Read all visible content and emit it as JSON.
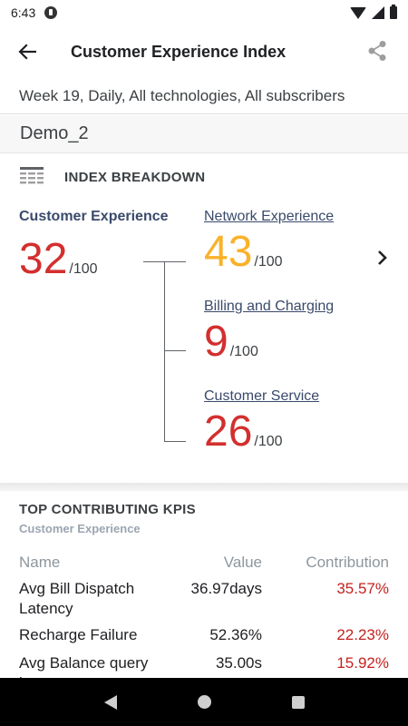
{
  "status_bar": {
    "time": "6:43"
  },
  "app_bar": {
    "title": "Customer Experience Index",
    "back_icon": "arrow-back-icon",
    "share_icon": "share-icon"
  },
  "filter": {
    "text": "Week 19, Daily, All technologies, All subscribers"
  },
  "context": {
    "name": "Demo_2"
  },
  "breakdown": {
    "section_title": "INDEX BREAKDOWN",
    "section_icon": "table-icon",
    "main": {
      "label": "Customer Experience",
      "score": "32",
      "denominator": "/100",
      "color": "#d32f2f"
    },
    "items": [
      {
        "label": "Network Experience",
        "score": "43",
        "denominator": "/100",
        "color": "#f9b22a"
      },
      {
        "label": "Billing and Charging",
        "score": "9",
        "denominator": "/100",
        "color": "#d32f2f"
      },
      {
        "label": "Customer Service",
        "score": "26",
        "denominator": "/100",
        "color": "#d32f2f"
      }
    ]
  },
  "kpis": {
    "title": "TOP CONTRIBUTING KPIS",
    "subtitle": "Customer Experience",
    "headers": {
      "name": "Name",
      "value": "Value",
      "contribution": "Contribution"
    },
    "rows": [
      {
        "name": "Avg Bill Dispatch Latency",
        "value": "36.97days",
        "contribution": "35.57%"
      },
      {
        "name": "Recharge Failure",
        "value": "52.36%",
        "contribution": "22.23%"
      },
      {
        "name": "Avg Balance query latency",
        "value": "35.00s",
        "contribution": "15.92%"
      }
    ]
  },
  "colors": {
    "accent_red": "#d32f2f",
    "accent_yellow": "#f9b22a",
    "link_navy": "#3a4a6b"
  }
}
